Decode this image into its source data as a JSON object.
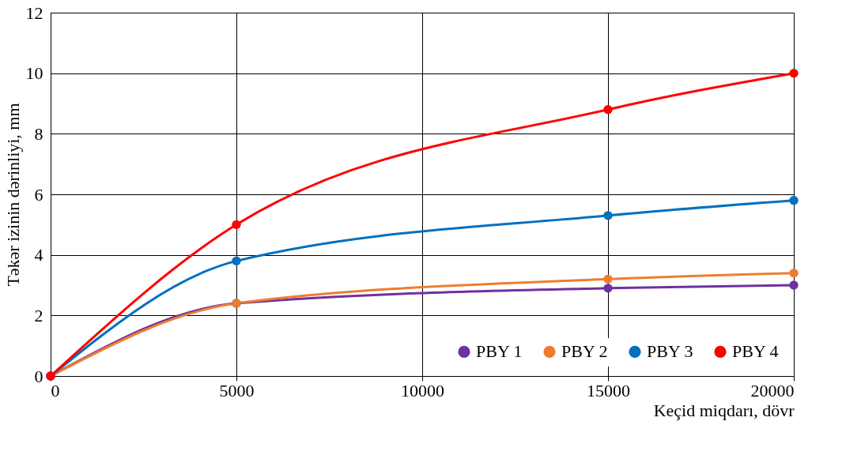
{
  "chart_data": {
    "type": "line",
    "xlabel": "Keçid miqdarı, dövr",
    "ylabel": "Təkər izinin  dərinliyi, mm",
    "x": [
      0,
      5000,
      15000,
      20000
    ],
    "series": [
      {
        "name": "PBY 1",
        "color": "#7030a0",
        "values": [
          0,
          2.4,
          2.9,
          3.0
        ]
      },
      {
        "name": "PBY 2",
        "color": "#ed7d31",
        "values": [
          0,
          2.4,
          3.2,
          3.4
        ]
      },
      {
        "name": "PBY 3",
        "color": "#0070c0",
        "values": [
          0,
          3.8,
          5.3,
          5.8
        ]
      },
      {
        "name": "PBY 4",
        "color": "#ff0000",
        "values": [
          0,
          5.0,
          8.8,
          10.0
        ]
      }
    ],
    "xlim": [
      0,
      20000
    ],
    "xticks": [
      0,
      5000,
      10000,
      15000,
      20000
    ],
    "ylim": [
      0,
      12
    ],
    "yticks": [
      0,
      2,
      4,
      6,
      8,
      10,
      12
    ],
    "grid": true,
    "legend": "bottom right",
    "marker": "circle",
    "line_style": "solid"
  }
}
